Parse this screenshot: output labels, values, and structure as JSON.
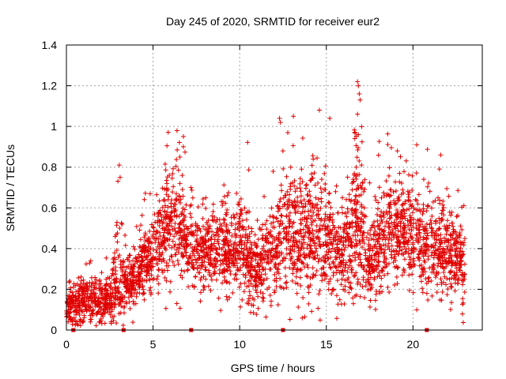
{
  "chart_data": {
    "type": "scatter",
    "title": "Day 245 of 2020, SRMTID for receiver eur2",
    "xlabel": "GPS time / hours",
    "ylabel": "SRMTID / TECUs",
    "xlim": [
      0,
      24
    ],
    "ylim": [
      0,
      1.4
    ],
    "xticks": [
      0,
      5,
      10,
      15,
      20
    ],
    "yticks": [
      0,
      0.2,
      0.4,
      0.6,
      0.8,
      1,
      1.2,
      1.4
    ],
    "ytick_labels": [
      "0",
      "0.2",
      "0.4",
      "0.6",
      "0.8",
      "1",
      "1.2",
      "1.4"
    ],
    "grid": true,
    "marker": "+",
    "color": "#e00000",
    "trend": [
      [
        0.0,
        0.12,
        0.04
      ],
      [
        0.5,
        0.13,
        0.05
      ],
      [
        1.0,
        0.15,
        0.06
      ],
      [
        1.5,
        0.15,
        0.06
      ],
      [
        2.0,
        0.14,
        0.06
      ],
      [
        2.5,
        0.15,
        0.06
      ],
      [
        3.0,
        0.3,
        0.15
      ],
      [
        3.5,
        0.22,
        0.06
      ],
      [
        4.0,
        0.25,
        0.07
      ],
      [
        4.5,
        0.32,
        0.08
      ],
      [
        5.0,
        0.38,
        0.09
      ],
      [
        5.5,
        0.45,
        0.1
      ],
      [
        6.0,
        0.5,
        0.14
      ],
      [
        6.5,
        0.52,
        0.15
      ],
      [
        7.0,
        0.4,
        0.1
      ],
      [
        8.0,
        0.38,
        0.1
      ],
      [
        9.0,
        0.38,
        0.1
      ],
      [
        10.0,
        0.4,
        0.12
      ],
      [
        11.0,
        0.3,
        0.1
      ],
      [
        12.0,
        0.4,
        0.12
      ],
      [
        13.0,
        0.5,
        0.15
      ],
      [
        14.0,
        0.45,
        0.15
      ],
      [
        15.0,
        0.45,
        0.15
      ],
      [
        16.0,
        0.35,
        0.1
      ],
      [
        16.7,
        0.55,
        0.2
      ],
      [
        17.5,
        0.3,
        0.1
      ],
      [
        18.0,
        0.4,
        0.12
      ],
      [
        18.5,
        0.5,
        0.15
      ],
      [
        19.5,
        0.5,
        0.12
      ],
      [
        20.5,
        0.42,
        0.12
      ],
      [
        21.5,
        0.4,
        0.12
      ],
      [
        22.5,
        0.35,
        0.1
      ],
      [
        22.9,
        0.3,
        0.1
      ]
    ],
    "spikes": [
      [
        3.05,
        0.81
      ],
      [
        3.1,
        0.75
      ],
      [
        6.55,
        0.85
      ],
      [
        6.75,
        0.9
      ],
      [
        12.3,
        1.04
      ],
      [
        12.35,
        1.02
      ],
      [
        13.1,
        1.05
      ],
      [
        14.6,
        1.08
      ],
      [
        15.2,
        1.04
      ],
      [
        16.8,
        1.22
      ],
      [
        16.85,
        1.2
      ],
      [
        16.9,
        1.16
      ],
      [
        16.95,
        1.13
      ],
      [
        16.8,
        1.06
      ],
      [
        16.85,
        0.96
      ],
      [
        19.1,
        0.88
      ],
      [
        21.6,
        0.86
      ]
    ],
    "gap_markers": [
      0.4,
      3.3,
      7.2,
      12.5,
      20.8
    ],
    "x_start": 0.0,
    "x_end": 23.0,
    "n_points": 3500,
    "seed": 245
  }
}
